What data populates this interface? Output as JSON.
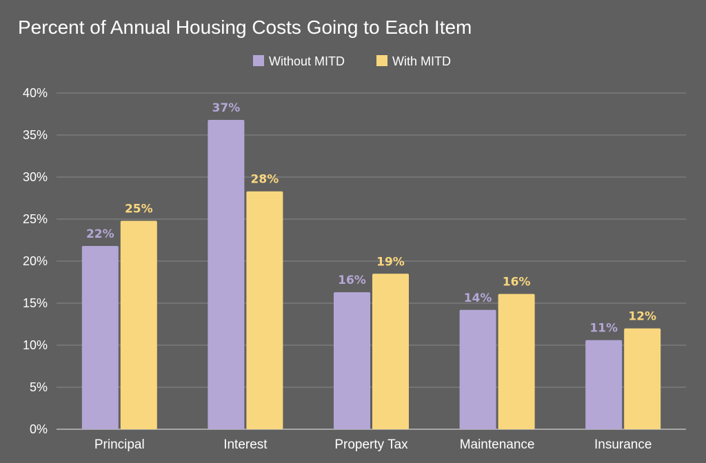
{
  "chart_data": {
    "type": "bar",
    "title": "Percent of Annual Housing Costs Going to Each Item",
    "xlabel": "",
    "ylabel": "",
    "categories": [
      "Principal",
      "Interest",
      "Property Tax",
      "Maintenance",
      "Insurance"
    ],
    "series": [
      {
        "name": "Without MITD",
        "color": "#b4a7d6",
        "values": [
          21.8,
          36.8,
          16.3,
          14.2,
          10.6
        ],
        "labels": [
          "22%",
          "37%",
          "16%",
          "14%",
          "11%"
        ]
      },
      {
        "name": "With MITD",
        "color": "#f9d77e",
        "values": [
          24.8,
          28.3,
          18.5,
          16.1,
          12.0
        ],
        "labels": [
          "25%",
          "28%",
          "19%",
          "16%",
          "12%"
        ]
      }
    ],
    "ylim": [
      0,
      40
    ],
    "yticks": [
      0,
      5,
      10,
      15,
      20,
      25,
      30,
      35,
      40
    ],
    "ytick_labels": [
      "0%",
      "5%",
      "10%",
      "15%",
      "20%",
      "25%",
      "30%",
      "35%",
      "40%"
    ],
    "grid": true,
    "legend_position": "top-center"
  }
}
